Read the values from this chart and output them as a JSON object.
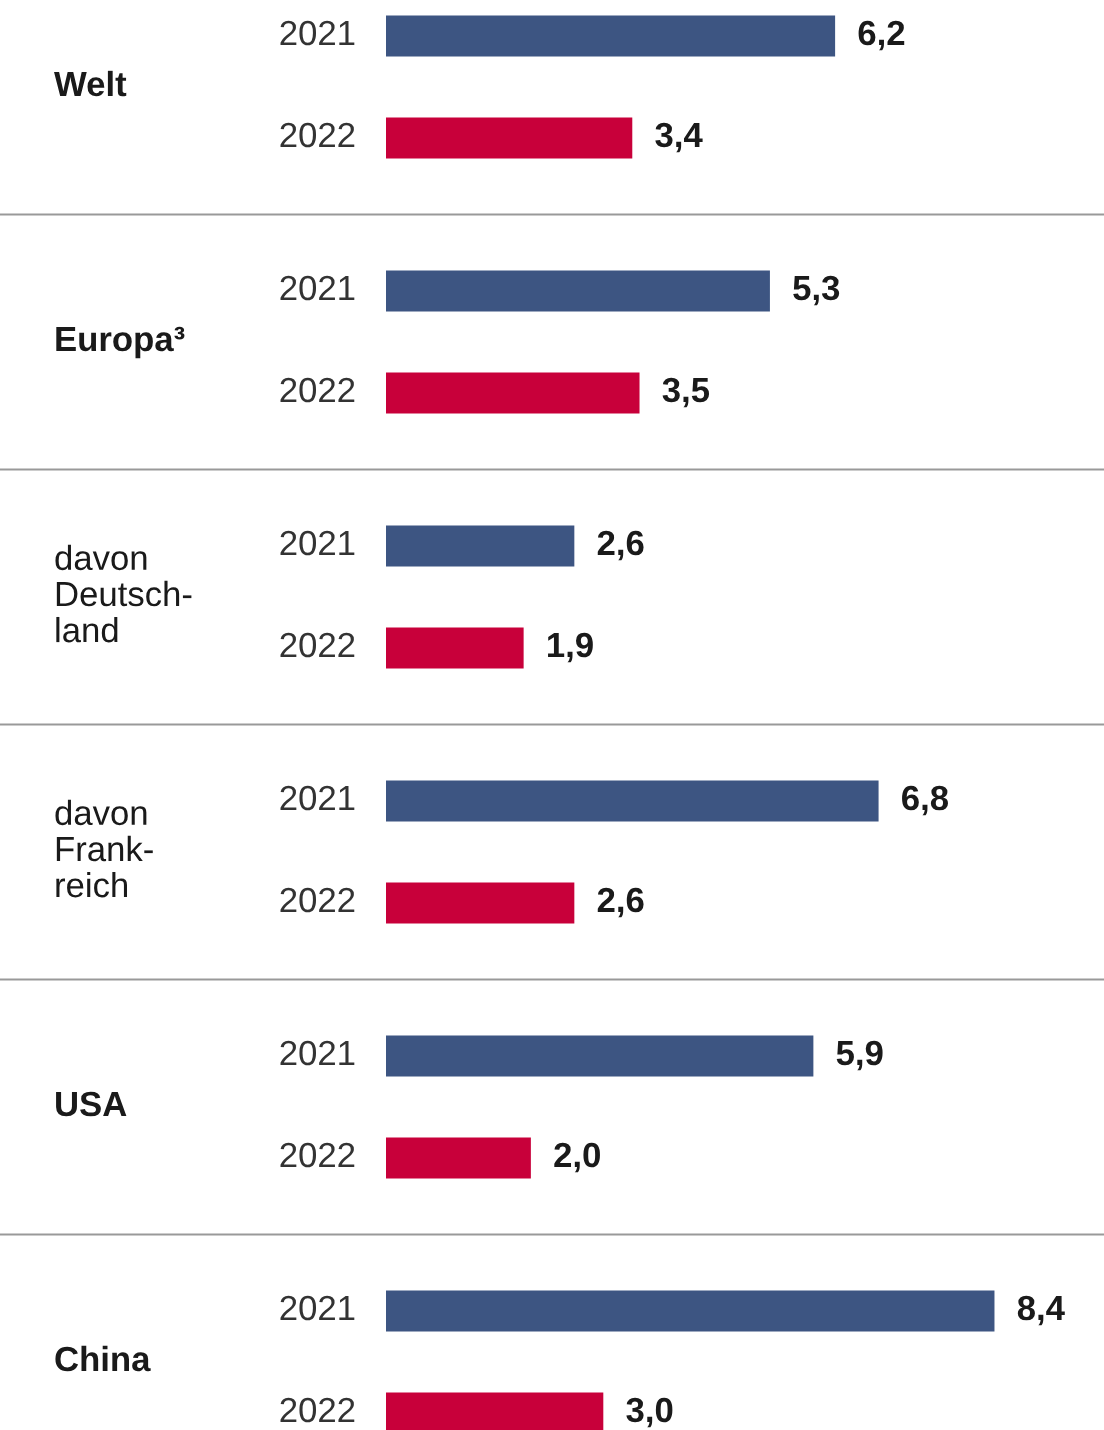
{
  "chart_data": {
    "type": "bar",
    "orientation": "horizontal",
    "categories": [
      "Welt",
      "Europa³",
      "davon\nDeutsch-\nland",
      "davon\nFrank-\nreich",
      "USA",
      "China"
    ],
    "series": [
      {
        "name": "2021",
        "color": "#3d5582",
        "values": [
          6.2,
          5.3,
          2.6,
          6.8,
          5.9,
          8.4
        ],
        "value_labels": [
          "6,2",
          "5,3",
          "2,6",
          "6,8",
          "5,9",
          "8,4"
        ]
      },
      {
        "name": "2022",
        "color": "#c8003a",
        "values": [
          3.4,
          3.5,
          1.9,
          2.6,
          2.0,
          3.0
        ],
        "value_labels": [
          "3,4",
          "3,5",
          "1,9",
          "2,6",
          "2,0",
          "3,0"
        ]
      }
    ]
  }
}
